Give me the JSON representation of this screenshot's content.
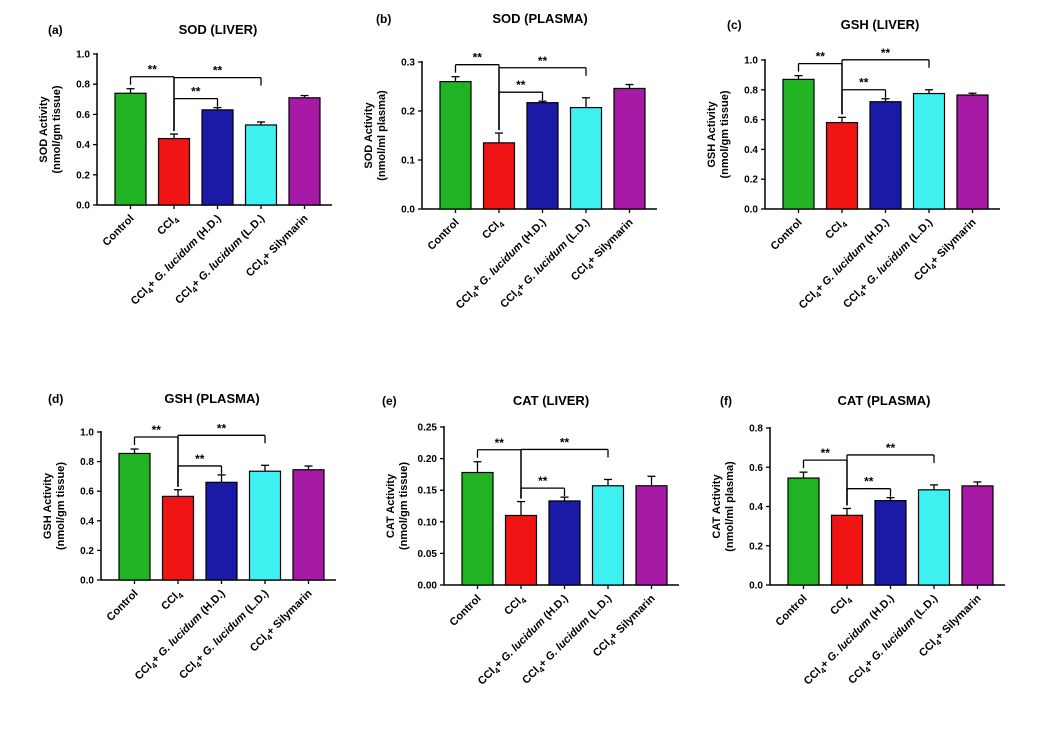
{
  "figure": {
    "significance_label": "**",
    "colors": [
      "#22b324",
      "#f01414",
      "#1a1aa6",
      "#3ef0f0",
      "#a61aa6"
    ]
  },
  "chart_data": [
    {
      "panel": "(a)",
      "type": "bar",
      "title": "SOD (LIVER)",
      "ylabel": [
        "SOD Activity",
        "(nmol/gm tissue)"
      ],
      "ylim": [
        0,
        1.0
      ],
      "yticks": [
        "0.0",
        "0.2",
        "0.4",
        "0.6",
        "0.8",
        "1.0"
      ],
      "categories": [
        "Control",
        "CCl4",
        "CCl4+ G. lucidum (H.D.)",
        "CCl4+ G. lucidum (L.D.)",
        "CCl4+ Silymarin"
      ],
      "values": [
        0.74,
        0.44,
        0.63,
        0.53,
        0.71
      ],
      "errors": [
        0.03,
        0.03,
        0.015,
        0.02,
        0.015
      ],
      "brackets": [
        [
          0,
          1
        ],
        [
          1,
          2
        ],
        [
          1,
          3
        ]
      ]
    },
    {
      "panel": "(b)",
      "type": "bar",
      "title": "SOD (PLASMA)",
      "ylabel": [
        "SOD Activity",
        "(nmol/ml plasma)"
      ],
      "ylim": [
        0,
        0.3
      ],
      "yticks": [
        "0.0",
        "0.1",
        "0.2",
        "0.3"
      ],
      "categories": [
        "Control",
        "CCl4",
        "CCl4+ G. lucidum (H.D.)",
        "CCl4+ G. lucidum (L.D.)",
        "CCl4+ Silymarin"
      ],
      "values": [
        0.26,
        0.135,
        0.217,
        0.207,
        0.246
      ],
      "errors": [
        0.01,
        0.02,
        0.003,
        0.02,
        0.008
      ],
      "brackets": [
        [
          0,
          1
        ],
        [
          1,
          2
        ],
        [
          1,
          3
        ]
      ]
    },
    {
      "panel": "(c)",
      "type": "bar",
      "title": "GSH (LIVER)",
      "ylabel": [
        "GSH Activity",
        "(nmol/gm tissue)"
      ],
      "ylim": [
        0,
        1.0
      ],
      "yticks": [
        "0.0",
        "0.2",
        "0.4",
        "0.6",
        "0.8",
        "1.0"
      ],
      "categories": [
        "Control",
        "CCl4",
        "CCl4+ G. lucidum (H.D.)",
        "CCl4+ G. lucidum (L.D.)",
        "CCl4+ Silymarin"
      ],
      "values": [
        0.87,
        0.58,
        0.72,
        0.775,
        0.765
      ],
      "errors": [
        0.025,
        0.035,
        0.02,
        0.025,
        0.012
      ],
      "brackets": [
        [
          0,
          1
        ],
        [
          1,
          2
        ],
        [
          1,
          3
        ]
      ]
    },
    {
      "panel": "(d)",
      "type": "bar",
      "title": "GSH (PLASMA)",
      "ylabel": [
        "GSH Activity",
        "(nmol/gm tissue)"
      ],
      "ylim": [
        0,
        1.0
      ],
      "yticks": [
        "0.0",
        "0.2",
        "0.4",
        "0.6",
        "0.8",
        "1.0"
      ],
      "categories": [
        "Control",
        "CCl4",
        "CCl4+ G. lucidum (H.D.)",
        "CCl4+ G. lucidum (L.D.)",
        "CCl4+ Silymarin"
      ],
      "values": [
        0.855,
        0.565,
        0.66,
        0.735,
        0.745
      ],
      "errors": [
        0.03,
        0.045,
        0.05,
        0.04,
        0.025
      ],
      "brackets": [
        [
          0,
          1
        ],
        [
          1,
          2
        ],
        [
          1,
          3
        ]
      ]
    },
    {
      "panel": "(e)",
      "type": "bar",
      "title": "CAT (LIVER)",
      "ylabel": [
        "CAT Activity",
        "(nmol/gm tissue)"
      ],
      "ylim": [
        0,
        0.25
      ],
      "yticks": [
        "0.00",
        "0.05",
        "0.10",
        "0.15",
        "0.20",
        "0.25"
      ],
      "categories": [
        "Control",
        "CCl4",
        "CCl4+ G. lucidum (H.D.)",
        "CCl4+ G. lucidum (L.D.)",
        "CCl4+ Silymarin"
      ],
      "values": [
        0.178,
        0.11,
        0.133,
        0.157,
        0.157
      ],
      "errors": [
        0.017,
        0.022,
        0.006,
        0.01,
        0.015
      ],
      "brackets": [
        [
          0,
          1
        ],
        [
          1,
          2
        ],
        [
          1,
          3
        ]
      ]
    },
    {
      "panel": "(f)",
      "type": "bar",
      "title": "CAT (PLASMA)",
      "ylabel": [
        "CAT Activity",
        "(nmol/ml plasma)"
      ],
      "ylim": [
        0,
        0.8
      ],
      "yticks": [
        "0.0",
        "0.2",
        "0.4",
        "0.6",
        "0.8"
      ],
      "categories": [
        "Control",
        "CCl4",
        "CCl4+ G. lucidum (H.D.)",
        "CCl4+ G. lucidum (L.D.)",
        "CCl4+ Silymarin"
      ],
      "values": [
        0.545,
        0.355,
        0.43,
        0.485,
        0.505
      ],
      "errors": [
        0.03,
        0.035,
        0.015,
        0.025,
        0.02
      ],
      "brackets": [
        [
          0,
          1
        ],
        [
          1,
          2
        ],
        [
          1,
          3
        ]
      ]
    }
  ]
}
